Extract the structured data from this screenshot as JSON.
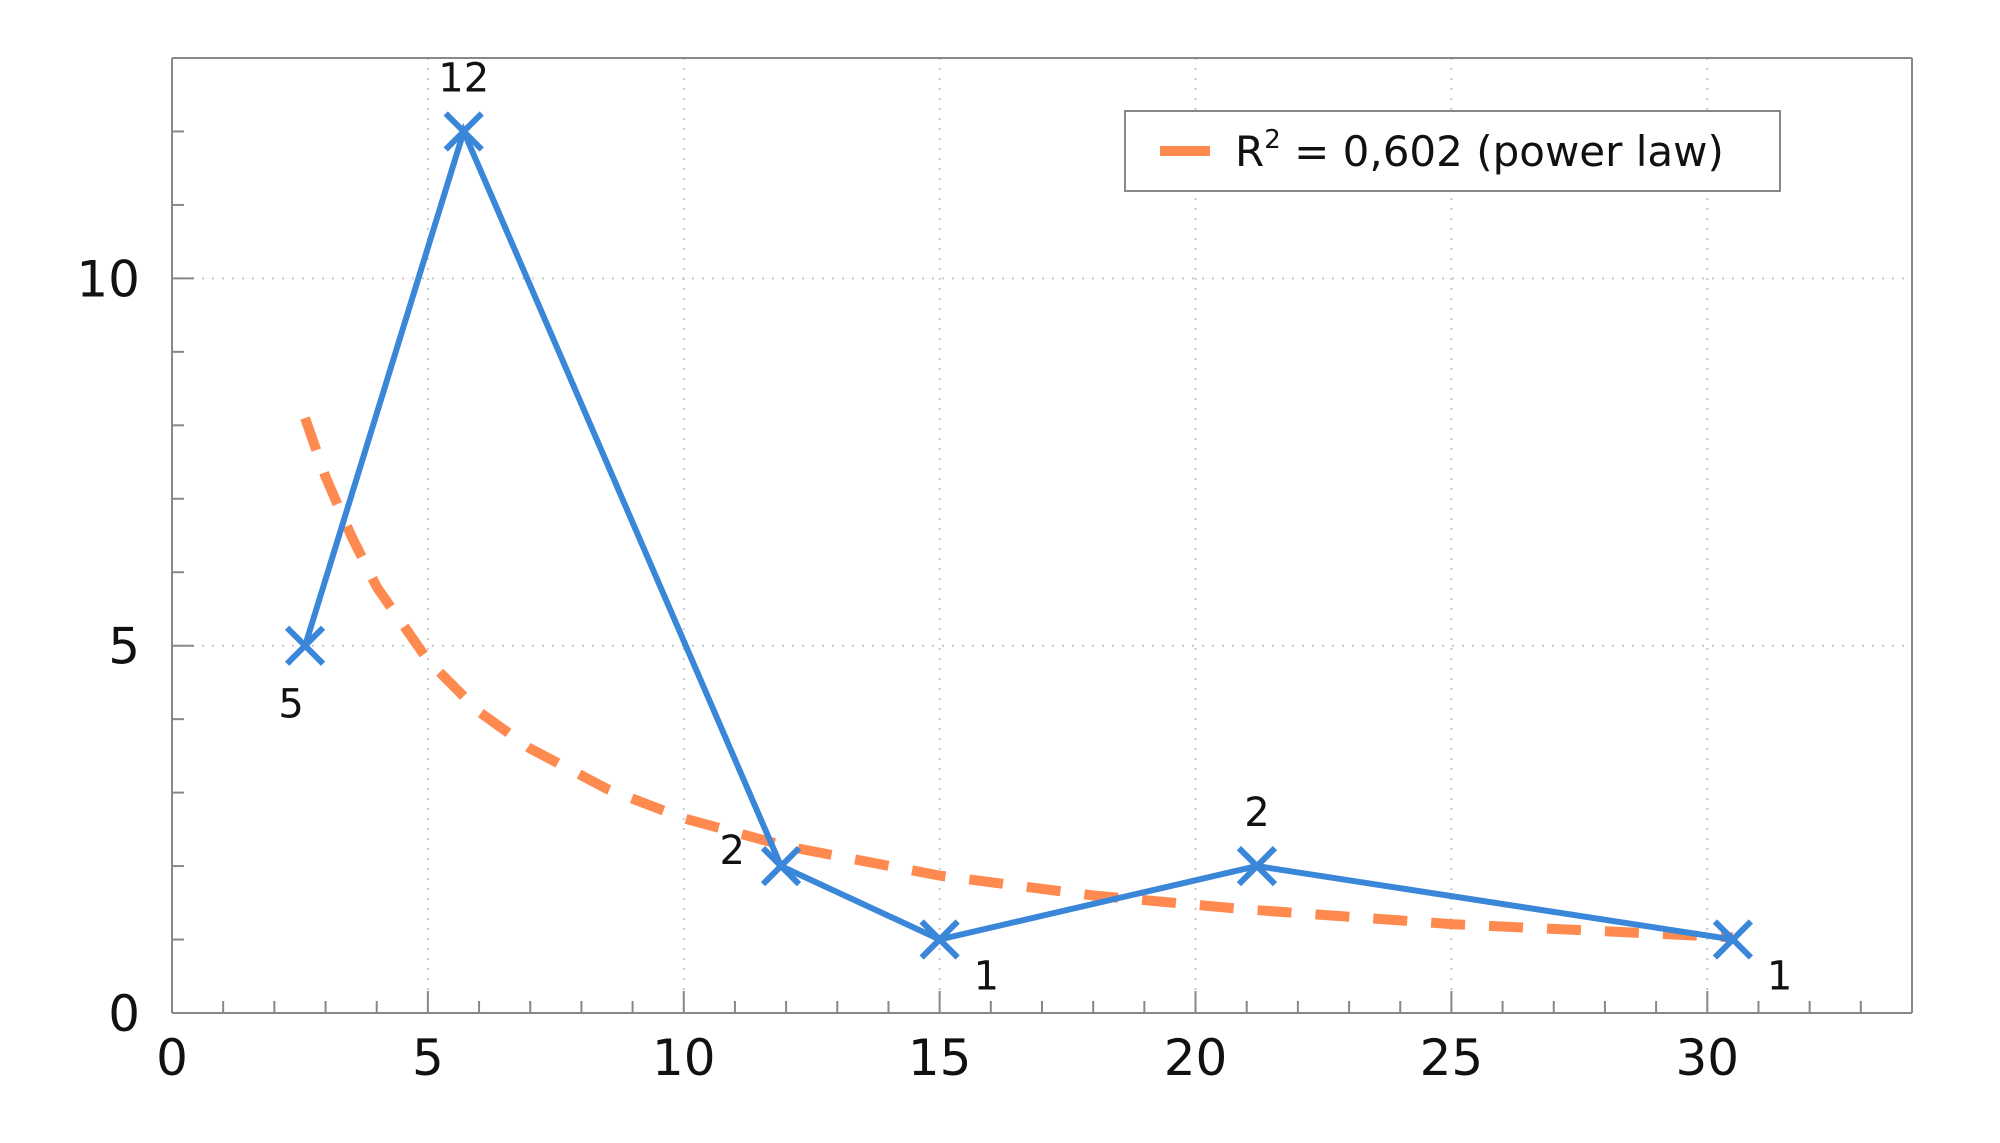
{
  "chart_data": {
    "type": "line",
    "title": "",
    "xlabel": "",
    "ylabel": "",
    "xlim": [
      0,
      34
    ],
    "ylim": [
      0,
      13
    ],
    "grid": true,
    "legend_position": "top-right",
    "x_ticks": [
      "0",
      "5",
      "10",
      "15",
      "20",
      "25",
      "30"
    ],
    "y_ticks": [
      "0",
      "5",
      "10"
    ],
    "colors": {
      "series": "#3a86d9",
      "trend": "#ff8a50",
      "axis": "#888888",
      "grid": "#c8c8c8"
    },
    "series": [
      {
        "marker": "x",
        "x": [
          2.6,
          5.7,
          11.9,
          15.0,
          21.2,
          30.5
        ],
        "values": [
          5,
          12,
          2,
          1,
          2,
          1
        ],
        "labels": [
          "5",
          "12",
          "2",
          "1",
          "2",
          "1"
        ]
      }
    ],
    "trendline": {
      "kind": "power",
      "name_prefix": "R",
      "name_sup": "2",
      "name_rest": " = 0,602 (power law)",
      "x": [
        2.6,
        3.0,
        3.5,
        4.0,
        5.0,
        6.0,
        7.0,
        8.5,
        10.0,
        12.0,
        15.0,
        18.0,
        21.0,
        25.0,
        30.5
      ],
      "values": [
        8.1,
        7.3,
        6.5,
        5.8,
        4.8,
        4.1,
        3.6,
        3.05,
        2.65,
        2.27,
        1.87,
        1.6,
        1.41,
        1.21,
        1.03
      ]
    }
  }
}
